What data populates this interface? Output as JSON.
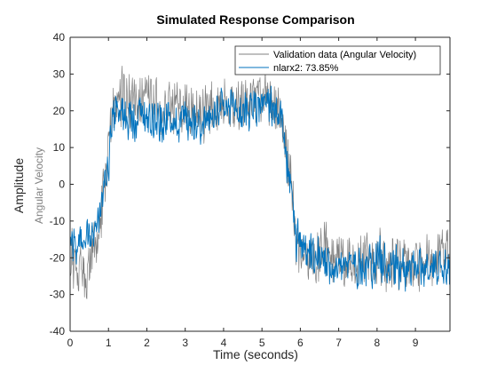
{
  "chart_data": {
    "type": "line",
    "title": "Simulated Response Comparison",
    "xlabel": "Time (seconds)",
    "ylabel": "Amplitude",
    "ylabel_channel": "Angular Velocity",
    "xlim": [
      0,
      9.9
    ],
    "ylim": [
      -40,
      40
    ],
    "xticks": [
      0,
      1,
      2,
      3,
      4,
      5,
      6,
      7,
      8,
      9
    ],
    "yticks": [
      -40,
      -30,
      -20,
      -10,
      0,
      10,
      20,
      30,
      40
    ],
    "grid": false,
    "legend_position": "top-right",
    "colors": {
      "validation": "#808080",
      "model": "#0072BD",
      "axes": "#262626"
    },
    "series": [
      {
        "name": "Validation data (Angular Velocity)",
        "color": "#808080",
        "noise_amplitude": 6,
        "x": [
          0,
          0.2,
          0.4,
          0.6,
          0.8,
          1.0,
          1.1,
          1.3,
          1.6,
          2.0,
          2.5,
          3.0,
          3.5,
          4.0,
          4.5,
          5.0,
          5.3,
          5.5,
          5.6,
          5.75,
          5.9,
          6.2,
          6.6,
          7.0,
          7.5,
          8.0,
          8.5,
          9.0,
          9.5,
          9.9
        ],
        "y": [
          -20,
          -23,
          -25,
          -19,
          -10,
          8,
          20,
          24,
          22,
          23,
          20,
          21,
          19,
          23,
          22,
          24,
          23,
          20,
          10,
          0,
          -16,
          -20,
          -18,
          -20,
          -21,
          -19,
          -22,
          -21,
          -20,
          -20
        ]
      },
      {
        "name": "nlarx2: 73.85%",
        "color": "#0072BD",
        "noise_amplitude": 4.5,
        "x": [
          0,
          0.2,
          0.4,
          0.6,
          0.8,
          1.0,
          1.1,
          1.3,
          1.6,
          2.0,
          2.5,
          3.0,
          3.5,
          4.0,
          4.5,
          5.0,
          5.3,
          5.5,
          5.6,
          5.75,
          5.9,
          6.2,
          6.6,
          7.0,
          7.5,
          8.0,
          8.5,
          9.0,
          9.5,
          9.9
        ],
        "y": [
          -14,
          -16,
          -17,
          -14,
          -6,
          6,
          18,
          20,
          18,
          19,
          17,
          18,
          17,
          20,
          20,
          22,
          21,
          18,
          9,
          -2,
          -15,
          -20,
          -21,
          -22,
          -22,
          -21,
          -22,
          -23,
          -22,
          -22
        ]
      }
    ]
  }
}
